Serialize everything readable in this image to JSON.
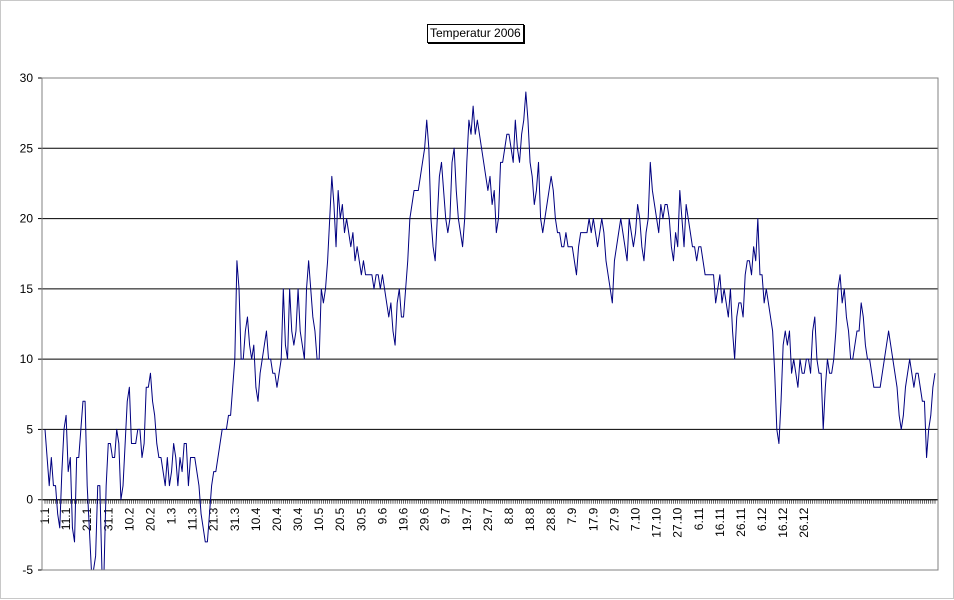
{
  "chart_data": {
    "type": "line",
    "title": "Temperatur 2006",
    "xlabel": "",
    "ylabel": "",
    "ylim": [
      -5,
      30
    ],
    "yticks": [
      -5,
      0,
      5,
      10,
      15,
      20,
      25,
      30
    ],
    "grid": "horizontal",
    "legend": "none",
    "line_color": "#000080",
    "x_tick_labels": [
      "1.1",
      "11.1",
      "21.1",
      "31.1",
      "10.2",
      "20.2",
      "1.3",
      "11.3",
      "21.3",
      "31.3",
      "10.4",
      "20.4",
      "30.4",
      "10.5",
      "20.5",
      "30.5",
      "9.6",
      "19.6",
      "29.6",
      "9.7",
      "19.7",
      "29.7",
      "8.8",
      "18.8",
      "28.8",
      "7.9",
      "17.9",
      "27.9",
      "7.10",
      "17.10",
      "27.10",
      "6.11",
      "16.11",
      "26.11",
      "6.12",
      "16.12",
      "26.12"
    ],
    "x_start": "1.1",
    "x_end": "31.12",
    "series": [
      {
        "values": [
          5,
          3,
          1,
          3,
          1,
          1,
          -1,
          -2,
          2,
          5,
          6,
          2,
          3,
          -2,
          -3,
          3,
          3,
          5,
          7,
          7,
          1,
          -2,
          -5,
          -5,
          -4,
          1,
          1,
          -5,
          -5,
          1,
          4,
          4,
          3,
          3,
          5,
          4,
          0,
          1,
          4,
          7,
          8,
          4,
          4,
          4,
          5,
          5,
          3,
          4,
          8,
          8,
          9,
          7,
          6,
          4,
          3,
          3,
          2,
          1,
          3,
          1,
          2,
          4,
          3,
          1,
          3,
          2,
          4,
          4,
          1,
          3,
          3,
          3,
          2,
          1,
          -1,
          -2,
          -3,
          -3,
          -1,
          1,
          2,
          2,
          3,
          4,
          5,
          5,
          5,
          6,
          6,
          8,
          10,
          17,
          15,
          10,
          10,
          12,
          13,
          11,
          10,
          11,
          8,
          7,
          9,
          10,
          11,
          12,
          10,
          10,
          9,
          9,
          8,
          9,
          10,
          15,
          11,
          10,
          15,
          12,
          11,
          12,
          15,
          12,
          11,
          10,
          15,
          17,
          15,
          13,
          12,
          10,
          10,
          15,
          14,
          15,
          17,
          20,
          23,
          21,
          18,
          22,
          20,
          21,
          19,
          20,
          19,
          18,
          19,
          17,
          18,
          17,
          16,
          17,
          16,
          16,
          16,
          16,
          15,
          16,
          16,
          15,
          16,
          15,
          14,
          13,
          14,
          12,
          11,
          14,
          15,
          13,
          13,
          15,
          17,
          20,
          21,
          22,
          22,
          22,
          23,
          24,
          25,
          27,
          25,
          20,
          18,
          17,
          20,
          23,
          24,
          22,
          20,
          19,
          20,
          24,
          25,
          22,
          20,
          19,
          18,
          20,
          24,
          27,
          26,
          28,
          26,
          27,
          26,
          25,
          24,
          23,
          22,
          23,
          21,
          22,
          19,
          20,
          24,
          24,
          25,
          26,
          26,
          25,
          24,
          27,
          25,
          24,
          26,
          27,
          29,
          27,
          24,
          23,
          21,
          22,
          24,
          20,
          19,
          20,
          21,
          22,
          23,
          22,
          20,
          19,
          19,
          18,
          18,
          19,
          18,
          18,
          18,
          17,
          16,
          18,
          19,
          19,
          19,
          19,
          20,
          19,
          20,
          19,
          18,
          19,
          20,
          19,
          17,
          16,
          15,
          14,
          17,
          18,
          19,
          20,
          19,
          18,
          17,
          20,
          19,
          18,
          19,
          21,
          20,
          18,
          17,
          19,
          20,
          24,
          22,
          21,
          20,
          19,
          21,
          20,
          21,
          21,
          20,
          18,
          17,
          19,
          18,
          22,
          20,
          18,
          21,
          20,
          19,
          18,
          18,
          17,
          18,
          18,
          17,
          16,
          16,
          16,
          16,
          16,
          14,
          15,
          16,
          14,
          15,
          14,
          13,
          15,
          12,
          10,
          13,
          14,
          14,
          13,
          16,
          17,
          17,
          16,
          18,
          17,
          20,
          16,
          16,
          14,
          15,
          14,
          13,
          12,
          9,
          5,
          4,
          7,
          11,
          12,
          11,
          12,
          9,
          10,
          9,
          8,
          10,
          9,
          9,
          10,
          10,
          9,
          12,
          13,
          10,
          9,
          9,
          5,
          8,
          10,
          9,
          9,
          10,
          12,
          15,
          16,
          14,
          15,
          13,
          12,
          10,
          10,
          11,
          12,
          12,
          14,
          13,
          11,
          10,
          10,
          9,
          8,
          8,
          8,
          8,
          9,
          10,
          11,
          12,
          11,
          10,
          9,
          8,
          6,
          5,
          6,
          8,
          9,
          10,
          9,
          8,
          9,
          9,
          8,
          7,
          7,
          3,
          5,
          6,
          8,
          9
        ]
      }
    ]
  }
}
